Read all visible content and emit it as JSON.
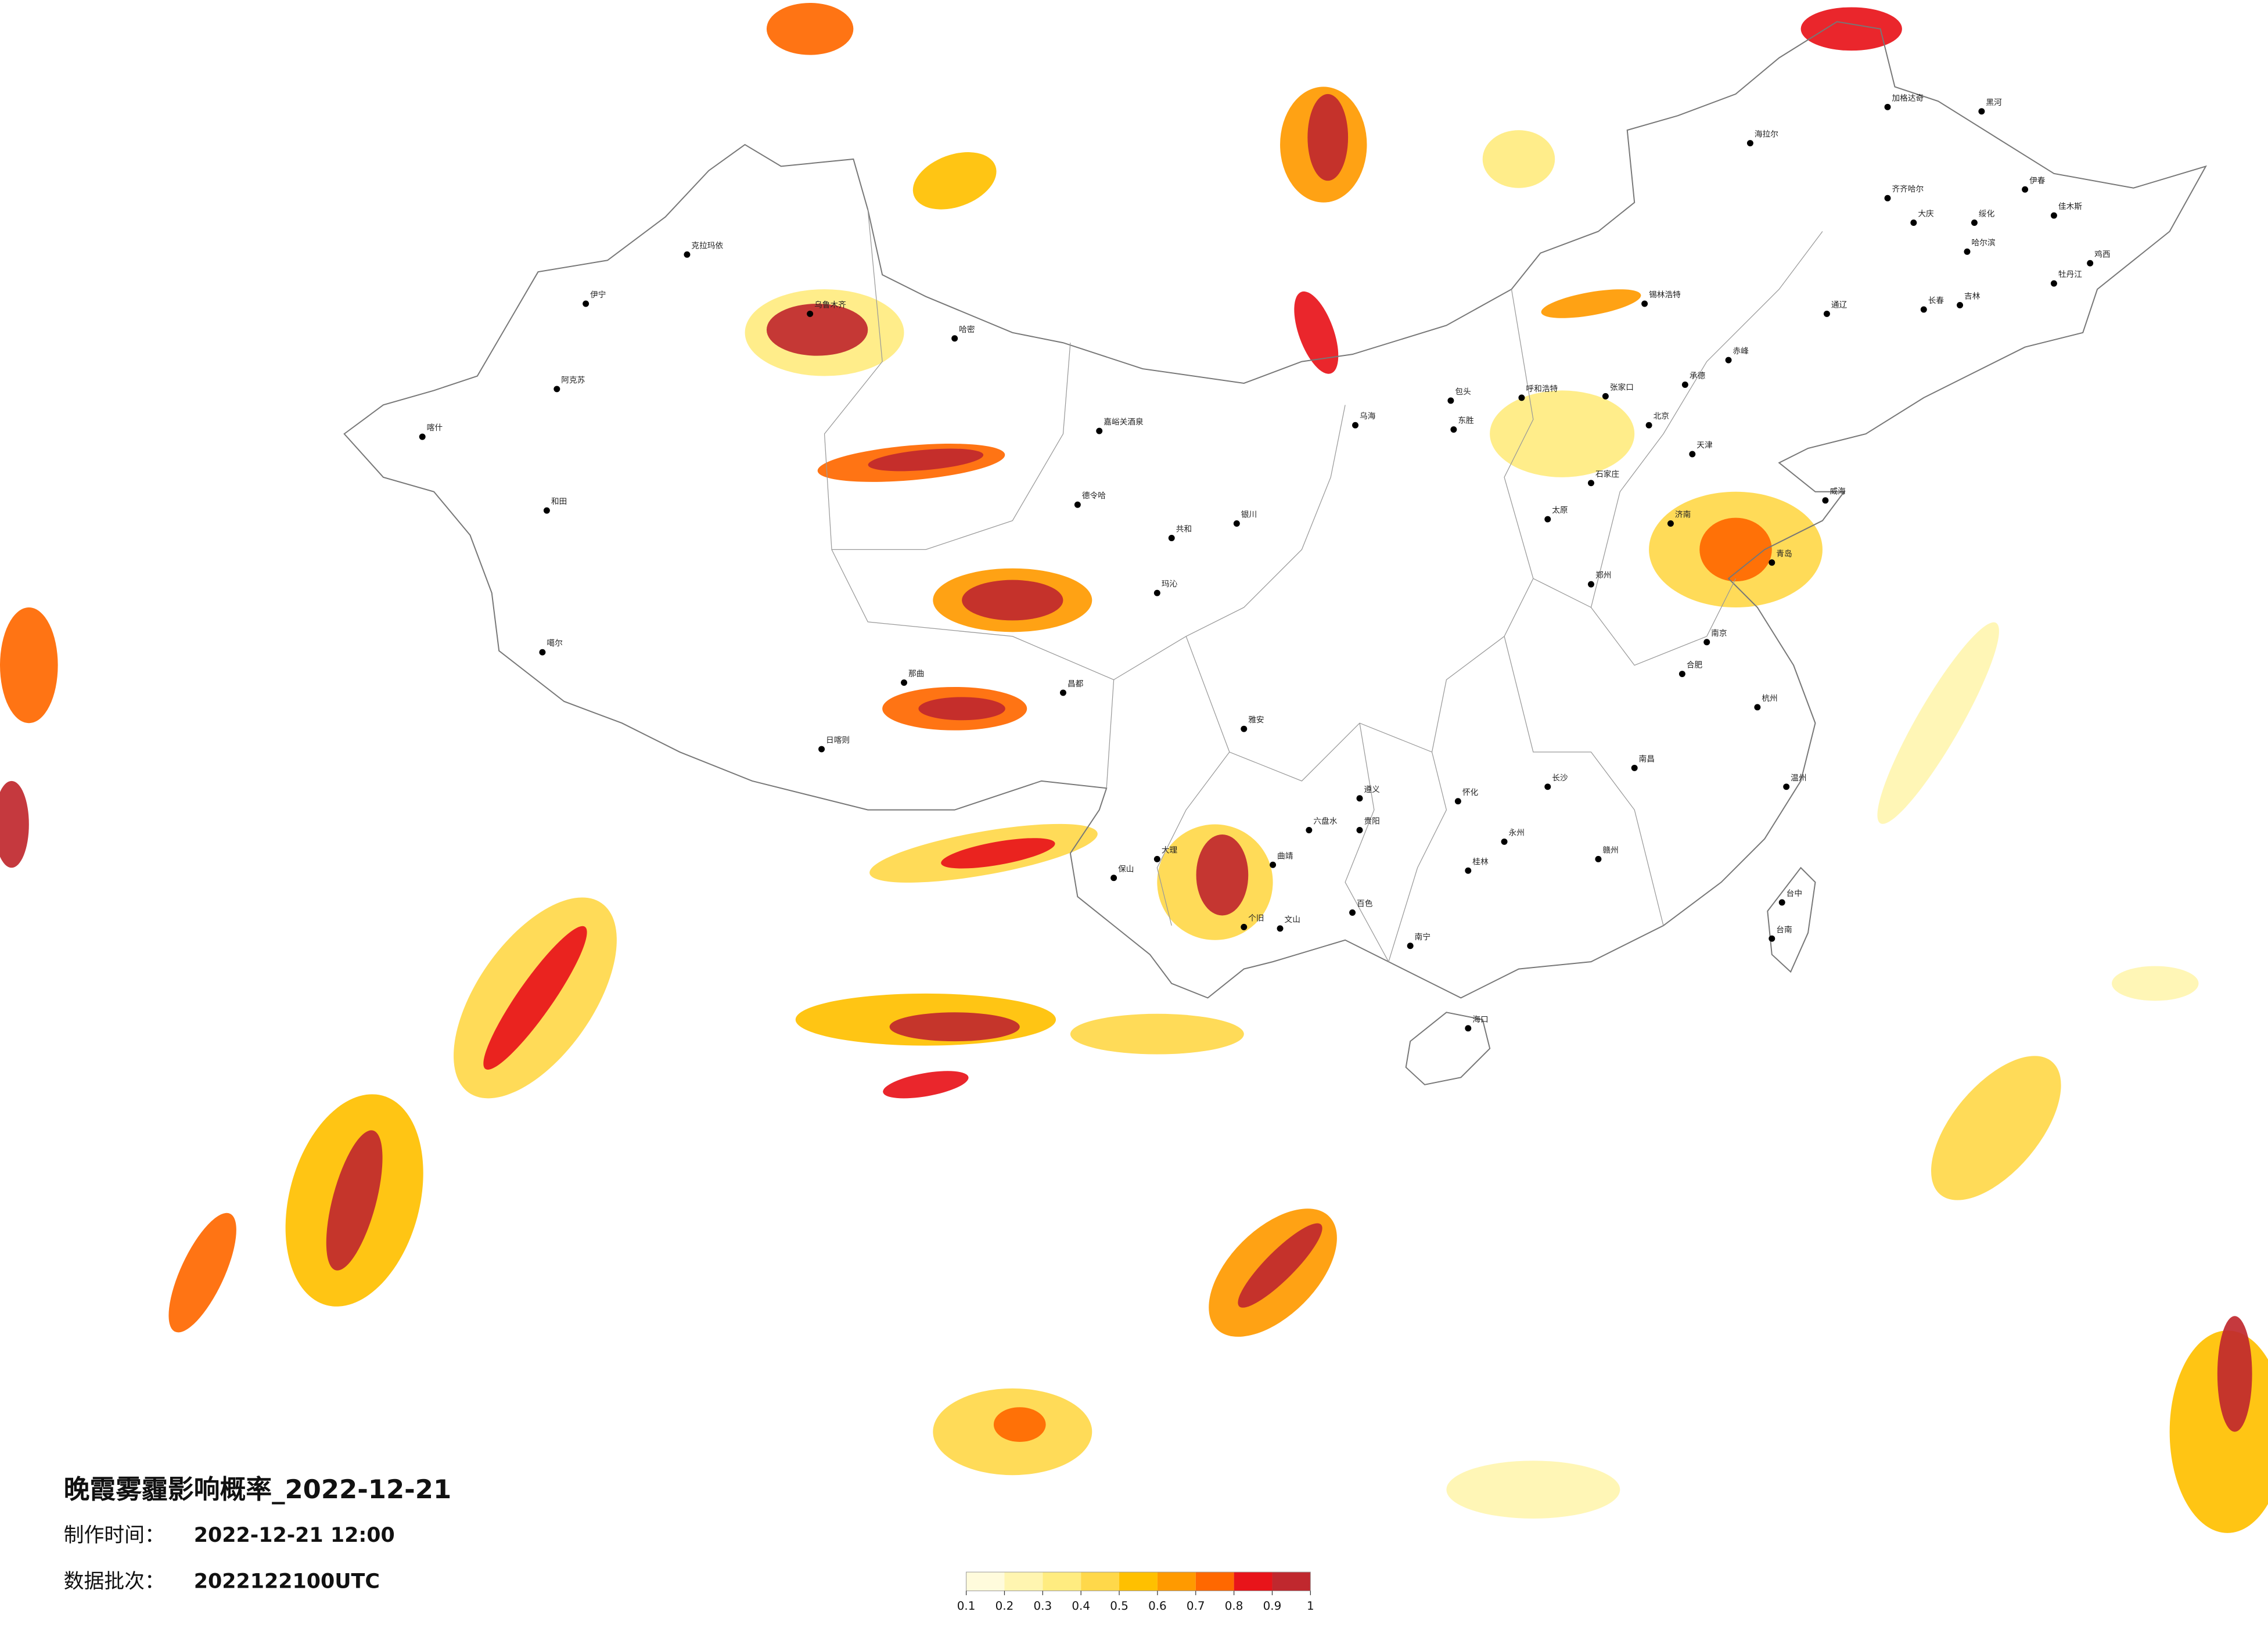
{
  "title": "晚霞雾霾影响概率_2022-12-21",
  "production_time": {
    "label": "制作时间：",
    "value": "2022-12-21 12:00"
  },
  "data_batch": {
    "label": "数据批次：",
    "value": "2022122100UTC"
  },
  "legend": {
    "colors": [
      "#fffbdc",
      "#fff5b0",
      "#ffec80",
      "#ffd84a",
      "#ffc000",
      "#ff9a00",
      "#ff6800",
      "#e8141a",
      "#c0282e"
    ],
    "ticks": [
      0.1,
      0.2,
      0.3,
      0.4,
      0.5,
      0.6,
      0.7,
      0.8,
      0.9,
      1
    ]
  },
  "cities": [
    "乌鲁木齐",
    "克拉玛依",
    "伊宁",
    "阿克苏",
    "喀什",
    "和田",
    "哈密",
    "噶尔",
    "日喀则",
    "那曲",
    "昌都",
    "德令哈",
    "嘉峪关酒泉",
    "共和",
    "玛沁",
    "银川",
    "呼和浩特",
    "包头",
    "东胜",
    "乌海",
    "锡林浩特",
    "海拉尔",
    "加格达奇",
    "黑河",
    "齐齐哈尔",
    "大庆",
    "绥化",
    "哈尔滨",
    "伊春",
    "佳木斯",
    "鸡西",
    "牡丹江",
    "长春",
    "吉林",
    "通辽",
    "赤峰",
    "张家口",
    "承德",
    "北京",
    "天津",
    "石家庄",
    "太原",
    "济南",
    "青岛",
    "威海",
    "郑州",
    "南京",
    "合肥",
    "杭州",
    "温州",
    "南昌",
    "长沙",
    "怀化",
    "永州",
    "赣州",
    "遵义",
    "贵阳",
    "六盘水",
    "曲靖",
    "个旧",
    "文山",
    "百色",
    "大理",
    "保山",
    "桂林",
    "南宁",
    "海口",
    "台中",
    "台南",
    "雅安"
  ]
}
